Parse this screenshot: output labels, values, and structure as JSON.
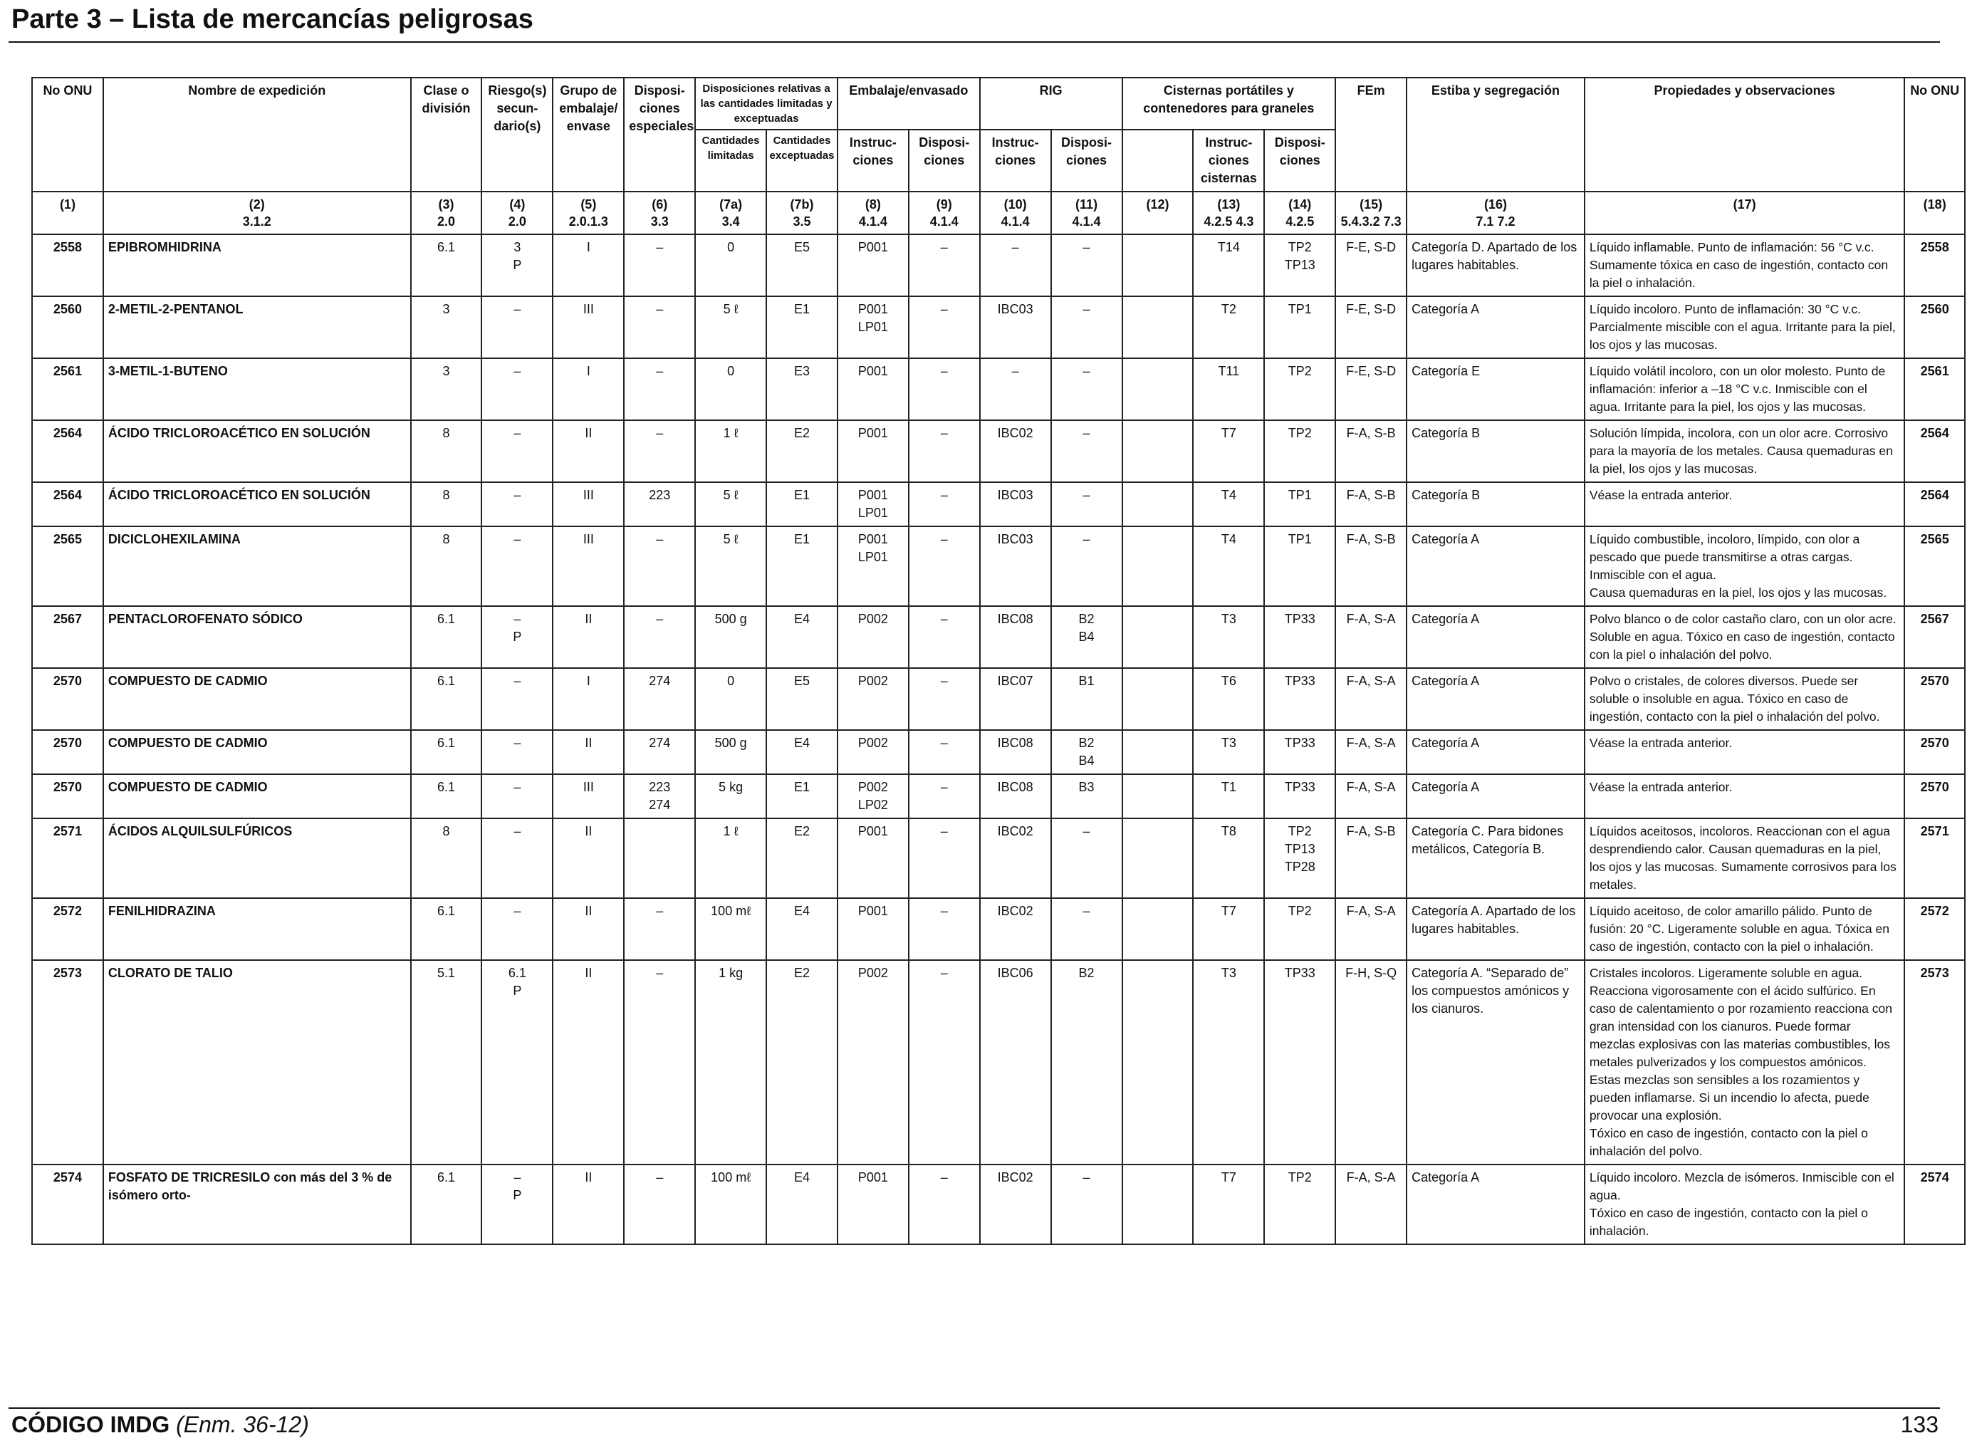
{
  "page": {
    "title": "Parte 3 – Lista de mercancías peligrosas",
    "footer_code": "CÓDIGO IMDG",
    "footer_amendment": "(Enm. 36-12)",
    "page_number": "133"
  },
  "table": {
    "headers": {
      "un_no": "No ONU",
      "name": "Nombre de expedición",
      "class": "Clase o división",
      "subrisk": "Riesgo(s) secun-dario(s)",
      "pg": "Grupo de embalaje/ envase",
      "sp": "Disposi-ciones especiales",
      "lq_group": "Disposiciones relativas a las cantidades limitadas y exceptuadas",
      "lq": "Cantidades limitadas",
      "eq": "Cantidades exceptuadas",
      "packing_group": "Embalaje/envasado",
      "pi": "Instruc-ciones",
      "pp": "Disposi-ciones",
      "ibc_group": "RIG",
      "ibc_i": "Instruc-ciones",
      "ibc_p": "Disposi-ciones",
      "tank_group": "Cisternas portátiles y contenedores para graneles",
      "tank_i": "Instruc-ciones cisternas",
      "tank_p": "Disposi-ciones",
      "ems": "FEm",
      "stowage": "Estiba y segregación",
      "properties": "Propiedades y observaciones",
      "un_no_right": "No ONU"
    },
    "column_numbers": [
      [
        "(1)",
        ""
      ],
      [
        "(2)",
        "3.1.2"
      ],
      [
        "(3)",
        "2.0"
      ],
      [
        "(4)",
        "2.0"
      ],
      [
        "(5)",
        "2.0.1.3"
      ],
      [
        "(6)",
        "3.3"
      ],
      [
        "(7a)",
        "3.4"
      ],
      [
        "(7b)",
        "3.5"
      ],
      [
        "(8)",
        "4.1.4"
      ],
      [
        "(9)",
        "4.1.4"
      ],
      [
        "(10)",
        "4.1.4"
      ],
      [
        "(11)",
        "4.1.4"
      ],
      [
        "(12)",
        ""
      ],
      [
        "(13)",
        "4.2.5 4.3"
      ],
      [
        "(14)",
        "4.2.5"
      ],
      [
        "(15)",
        "5.4.3.2 7.3"
      ],
      [
        "(16)",
        "7.1 7.2"
      ],
      [
        "(17)",
        ""
      ],
      [
        "(18)",
        ""
      ]
    ],
    "rows": [
      {
        "un": "2558",
        "name": "EPIBROMHIDRINA",
        "cls": "6.1",
        "sub": [
          "3",
          "P"
        ],
        "pg": "I",
        "sp": [
          "–"
        ],
        "lq": "0",
        "eq": "E5",
        "pi": [
          "P001"
        ],
        "pp": "–",
        "ibci": "–",
        "ibcp": [
          "–"
        ],
        "c12": "",
        "ti": "T14",
        "tp": [
          "TP2",
          "TP13"
        ],
        "ems": "F-E, S-D",
        "stow": "Categoría D. Apartado de los lugares habitables.",
        "props": [
          "Líquido inflamable. Punto de inflamación: 56 °C v.c. Sumamente tóxica en caso de ingestión, contacto con la piel o inhalación."
        ]
      },
      {
        "un": "2560",
        "name": "2-METIL-2-PENTANOL",
        "cls": "3",
        "sub": [
          "–"
        ],
        "pg": "III",
        "sp": [
          "–"
        ],
        "lq": "5 ℓ",
        "eq": "E1",
        "pi": [
          "P001",
          "LP01"
        ],
        "pp": "–",
        "ibci": "IBC03",
        "ibcp": [
          "–"
        ],
        "c12": "",
        "ti": "T2",
        "tp": [
          "TP1"
        ],
        "ems": "F-E, S-D",
        "stow": "Categoría A",
        "props": [
          "Líquido incoloro. Punto de inflamación: 30 °C v.c. Parcialmente miscible con el agua. Irritante para la piel, los ojos y las mucosas."
        ]
      },
      {
        "un": "2561",
        "name": "3-METIL-1-BUTENO",
        "cls": "3",
        "sub": [
          "–"
        ],
        "pg": "I",
        "sp": [
          "–"
        ],
        "lq": "0",
        "eq": "E3",
        "pi": [
          "P001"
        ],
        "pp": "–",
        "ibci": "–",
        "ibcp": [
          "–"
        ],
        "c12": "",
        "ti": "T11",
        "tp": [
          "TP2"
        ],
        "ems": "F-E, S-D",
        "stow": "Categoría E",
        "props": [
          "Líquido volátil incoloro, con un olor molesto. Punto de inflamación: inferior a –18 °C v.c. Inmiscible con el agua. Irritante para la piel, los ojos y las mucosas."
        ]
      },
      {
        "un": "2564",
        "name": "ÁCIDO TRICLOROACÉTICO EN SOLUCIÓN",
        "cls": "8",
        "sub": [
          "–"
        ],
        "pg": "II",
        "sp": [
          "–"
        ],
        "lq": "1 ℓ",
        "eq": "E2",
        "pi": [
          "P001"
        ],
        "pp": "–",
        "ibci": "IBC02",
        "ibcp": [
          "–"
        ],
        "c12": "",
        "ti": "T7",
        "tp": [
          "TP2"
        ],
        "ems": "F-A, S-B",
        "stow": "Categoría B",
        "props": [
          "Solución límpida, incolora, con un olor acre. Corrosivo para la mayoría de los metales. Causa quemaduras en la piel, los ojos y las mucosas."
        ]
      },
      {
        "un": "2564",
        "name": "ÁCIDO TRICLOROACÉTICO EN SOLUCIÓN",
        "cls": "8",
        "sub": [
          "–"
        ],
        "pg": "III",
        "sp": [
          "223"
        ],
        "lq": "5 ℓ",
        "eq": "E1",
        "pi": [
          "P001",
          "LP01"
        ],
        "pp": "–",
        "ibci": "IBC03",
        "ibcp": [
          "–"
        ],
        "c12": "",
        "ti": "T4",
        "tp": [
          "TP1"
        ],
        "ems": "F-A, S-B",
        "stow": "Categoría B",
        "props": [
          "Véase la entrada anterior."
        ]
      },
      {
        "un": "2565",
        "name": "DICICLOHEXILAMINA",
        "cls": "8",
        "sub": [
          "–"
        ],
        "pg": "III",
        "sp": [
          "–"
        ],
        "lq": "5 ℓ",
        "eq": "E1",
        "pi": [
          "P001",
          "LP01"
        ],
        "pp": "–",
        "ibci": "IBC03",
        "ibcp": [
          "–"
        ],
        "c12": "",
        "ti": "T4",
        "tp": [
          "TP1"
        ],
        "ems": "F-A, S-B",
        "stow": "Categoría A",
        "props": [
          "Líquido combustible, incoloro, límpido, con olor a pescado que puede transmitirse a otras cargas. Inmiscible con el agua.",
          "Causa quemaduras en la piel, los ojos y las mucosas."
        ]
      },
      {
        "un": "2567",
        "name": "PENTACLOROFENATO SÓDICO",
        "cls": "6.1",
        "sub": [
          "–",
          "P"
        ],
        "pg": "II",
        "sp": [
          "–"
        ],
        "lq": "500 g",
        "eq": "E4",
        "pi": [
          "P002"
        ],
        "pp": "–",
        "ibci": "IBC08",
        "ibcp": [
          "B2",
          "B4"
        ],
        "c12": "",
        "ti": "T3",
        "tp": [
          "TP33"
        ],
        "ems": "F-A, S-A",
        "stow": "Categoría A",
        "props": [
          "Polvo blanco o de color castaño claro, con un olor acre. Soluble en agua. Tóxico en caso de ingestión, contacto con la piel o inhalación del polvo."
        ]
      },
      {
        "un": "2570",
        "name": "COMPUESTO DE CADMIO",
        "cls": "6.1",
        "sub": [
          "–"
        ],
        "pg": "I",
        "sp": [
          "274"
        ],
        "lq": "0",
        "eq": "E5",
        "pi": [
          "P002"
        ],
        "pp": "–",
        "ibci": "IBC07",
        "ibcp": [
          "B1"
        ],
        "c12": "",
        "ti": "T6",
        "tp": [
          "TP33"
        ],
        "ems": "F-A, S-A",
        "stow": "Categoría A",
        "props": [
          "Polvo o cristales, de colores diversos. Puede ser soluble o insoluble en agua. Tóxico en caso de ingestión, contacto con la piel o inhalación del polvo."
        ]
      },
      {
        "un": "2570",
        "name": "COMPUESTO DE CADMIO",
        "cls": "6.1",
        "sub": [
          "–"
        ],
        "pg": "II",
        "sp": [
          "274"
        ],
        "lq": "500 g",
        "eq": "E4",
        "pi": [
          "P002"
        ],
        "pp": "–",
        "ibci": "IBC08",
        "ibcp": [
          "B2",
          "B4"
        ],
        "c12": "",
        "ti": "T3",
        "tp": [
          "TP33"
        ],
        "ems": "F-A, S-A",
        "stow": "Categoría A",
        "props": [
          "Véase la entrada anterior."
        ]
      },
      {
        "un": "2570",
        "name": "COMPUESTO DE CADMIO",
        "cls": "6.1",
        "sub": [
          "–"
        ],
        "pg": "III",
        "sp": [
          "223",
          "274"
        ],
        "lq": "5 kg",
        "eq": "E1",
        "pi": [
          "P002",
          "LP02"
        ],
        "pp": "–",
        "ibci": "IBC08",
        "ibcp": [
          "B3"
        ],
        "c12": "",
        "ti": "T1",
        "tp": [
          "TP33"
        ],
        "ems": "F-A, S-A",
        "stow": "Categoría A",
        "props": [
          "Véase la entrada anterior."
        ]
      },
      {
        "un": "2571",
        "name": "ÁCIDOS ALQUILSULFÚRICOS",
        "cls": "8",
        "sub": [
          "–"
        ],
        "pg": "II",
        "sp": [
          ""
        ],
        "lq": "1 ℓ",
        "eq": "E2",
        "pi": [
          "P001"
        ],
        "pp": "–",
        "ibci": "IBC02",
        "ibcp": [
          "–"
        ],
        "c12": "",
        "ti": "T8",
        "tp": [
          "TP2",
          "TP13",
          "TP28"
        ],
        "ems": "F-A, S-B",
        "stow": "Categoría C. Para bidones metálicos, Categoría B.",
        "props": [
          "Líquidos aceitosos, incoloros. Reaccionan con el agua desprendiendo calor. Causan quemaduras en la piel, los ojos y las mucosas. Sumamente corrosivos para los metales."
        ]
      },
      {
        "un": "2572",
        "name": "FENILHIDRAZINA",
        "cls": "6.1",
        "sub": [
          "–"
        ],
        "pg": "II",
        "sp": [
          "–"
        ],
        "lq": "100 mℓ",
        "eq": "E4",
        "pi": [
          "P001"
        ],
        "pp": "–",
        "ibci": "IBC02",
        "ibcp": [
          "–"
        ],
        "c12": "",
        "ti": "T7",
        "tp": [
          "TP2"
        ],
        "ems": "F-A, S-A",
        "stow": "Categoría A. Apartado de los lugares habitables.",
        "props": [
          "Líquido aceitoso, de color amarillo pálido. Punto de fusión: 20 °C. Ligeramente soluble en agua. Tóxica en caso de ingestión, contacto con la piel o inhalación."
        ]
      },
      {
        "un": "2573",
        "name": "CLORATO DE TALIO",
        "cls": "5.1",
        "sub": [
          "6.1",
          "P"
        ],
        "pg": "II",
        "sp": [
          "–"
        ],
        "lq": "1 kg",
        "eq": "E2",
        "pi": [
          "P002"
        ],
        "pp": "–",
        "ibci": "IBC06",
        "ibcp": [
          "B2"
        ],
        "c12": "",
        "ti": "T3",
        "tp": [
          "TP33"
        ],
        "ems": "F-H, S-Q",
        "stow": "Categoría A. “Separado de” los compuestos amónicos y los cianuros.",
        "props": [
          "Cristales incoloros. Ligeramente soluble en agua. Reacciona vigorosamente con el ácido sulfúrico. En caso de calentamiento o por rozamiento reacciona con gran intensidad con los cianuros. Puede formar mezclas explosivas con las materias combustibles, los metales pulverizados y los compuestos amónicos. Estas mezclas son sensibles a los rozamientos y pueden inflamarse. Si un incendio lo afecta, puede provocar una explosión.",
          "Tóxico en caso de ingestión, contacto con la piel o inhalación del polvo."
        ]
      },
      {
        "un": "2574",
        "name": "FOSFATO DE TRICRESILO con más del 3 % de isómero orto-",
        "cls": "6.1",
        "sub": [
          "–",
          "P"
        ],
        "pg": "II",
        "sp": [
          "–"
        ],
        "lq": "100 mℓ",
        "eq": "E4",
        "pi": [
          "P001"
        ],
        "pp": "–",
        "ibci": "IBC02",
        "ibcp": [
          "–"
        ],
        "c12": "",
        "ti": "T7",
        "tp": [
          "TP2"
        ],
        "ems": "F-A, S-A",
        "stow": "Categoría A",
        "props": [
          "Líquido incoloro. Mezcla de isómeros. Inmiscible con el agua.",
          "Tóxico en caso de ingestión, contacto con la piel o inhalación."
        ]
      }
    ]
  }
}
